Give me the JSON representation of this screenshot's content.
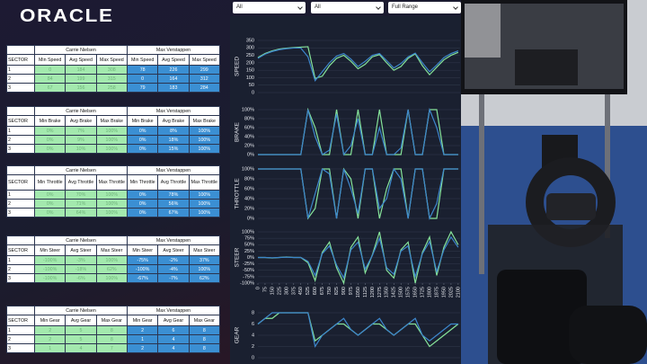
{
  "header": {
    "logo": "ORACLE"
  },
  "filters": [
    "All",
    "All",
    "Full Range"
  ],
  "tables": [
    {
      "groups": [
        "Carrie Nielsen",
        "Max Verstappen"
      ],
      "sector_label": "SECTOR",
      "columns": [
        "Min Speed",
        "Avg Speed",
        "Max Speed",
        "Min Speed",
        "Avg Speed",
        "Max Speed"
      ],
      "rows": [
        [
          "1",
          "0",
          "184",
          "308",
          "78",
          "226",
          "299"
        ],
        [
          "2",
          "84",
          "199",
          "315",
          "0",
          "164",
          "312"
        ],
        [
          "3",
          "67",
          "156",
          "258",
          "79",
          "183",
          "284"
        ]
      ]
    },
    {
      "groups": [
        "Carrie Nielsen",
        "Max Verstappen"
      ],
      "sector_label": "SECTOR",
      "columns": [
        "Min Brake",
        "Avg Brake",
        "Max Brake",
        "Min Brake",
        "Avg Brake",
        "Max Brake"
      ],
      "rows": [
        [
          "1",
          "0%",
          "7%",
          "100%",
          "0%",
          "8%",
          "100%"
        ],
        [
          "2",
          "0%",
          "9%",
          "100%",
          "0%",
          "18%",
          "100%"
        ],
        [
          "3",
          "0%",
          "10%",
          "100%",
          "0%",
          "15%",
          "100%"
        ]
      ]
    },
    {
      "groups": [
        "Carrie Nielsen",
        "Max Verstappen"
      ],
      "sector_label": "SECTOR",
      "columns": [
        "Min Throttle",
        "Avg Throttle",
        "Max Throttle",
        "Min Throttle",
        "Avg Throttle",
        "Max Throttle"
      ],
      "rows": [
        [
          "1",
          "0%",
          "70%",
          "100%",
          "0%",
          "78%",
          "100%"
        ],
        [
          "2",
          "0%",
          "71%",
          "100%",
          "0%",
          "56%",
          "100%"
        ],
        [
          "3",
          "0%",
          "64%",
          "100%",
          "0%",
          "67%",
          "100%"
        ]
      ]
    },
    {
      "groups": [
        "Carrie Nielsen",
        "Max Verstappen"
      ],
      "sector_label": "SECTOR",
      "columns": [
        "Min Steer",
        "Avg Steer",
        "Max Steer",
        "Min Steer",
        "Avg Steer",
        "Max Steer"
      ],
      "rows": [
        [
          "1",
          "-100%",
          "-3%",
          "100%",
          "-75%",
          "-2%",
          "37%"
        ],
        [
          "2",
          "-100%",
          "-18%",
          "62%",
          "-100%",
          "-4%",
          "100%"
        ],
        [
          "3",
          "-100%",
          "-6%",
          "100%",
          "-67%",
          "-7%",
          "62%"
        ]
      ]
    },
    {
      "groups": [
        "Carrie Nielsen",
        "Max Verstappen"
      ],
      "sector_label": "SECTOR",
      "columns": [
        "Min Gear",
        "Avg Gear",
        "Max Gear",
        "Min Gear",
        "Avg Gear",
        "Max Gear"
      ],
      "rows": [
        [
          "1",
          "2",
          "5",
          "8",
          "2",
          "6",
          "8"
        ],
        [
          "2",
          "2",
          "5",
          "8",
          "1",
          "4",
          "8"
        ],
        [
          "3",
          "1",
          "4",
          "7",
          "2",
          "4",
          "8"
        ]
      ]
    }
  ],
  "chart_data": [
    {
      "type": "line",
      "ylabel": "SPEED",
      "grid": true,
      "x": [
        0,
        75,
        150,
        225,
        300,
        375,
        450,
        525,
        600,
        675,
        750,
        825,
        900,
        975,
        1050,
        1125,
        1200,
        1275,
        1350,
        1425,
        1500,
        1575,
        1650,
        1725,
        1800,
        1875,
        1950,
        2025,
        2100
      ],
      "xlim": [
        0,
        2120
      ],
      "ylim": [
        0,
        350
      ],
      "yticks": [
        0,
        50,
        100,
        150,
        200,
        250,
        300,
        350
      ],
      "series": [
        {
          "color": "#86e39a",
          "values": [
            235,
            262,
            280,
            292,
            298,
            302,
            305,
            308,
            95,
            110,
            180,
            230,
            250,
            210,
            160,
            190,
            240,
            255,
            200,
            150,
            175,
            230,
            260,
            180,
            120,
            170,
            220,
            250,
            270
          ]
        },
        {
          "color": "#3d86cc",
          "values": [
            230,
            258,
            276,
            288,
            295,
            299,
            299,
            240,
            80,
            140,
            200,
            245,
            262,
            225,
            175,
            210,
            250,
            262,
            215,
            165,
            195,
            240,
            265,
            200,
            140,
            185,
            235,
            262,
            280
          ]
        }
      ]
    },
    {
      "type": "line",
      "ylabel": "BRAKE",
      "grid": true,
      "x": [
        0,
        75,
        150,
        225,
        300,
        375,
        450,
        525,
        600,
        675,
        750,
        825,
        900,
        975,
        1050,
        1125,
        1200,
        1275,
        1350,
        1425,
        1500,
        1575,
        1650,
        1725,
        1800,
        1875,
        1950,
        2025,
        2100
      ],
      "xlim": [
        0,
        2120
      ],
      "ylim": [
        0,
        100
      ],
      "yticks": [
        {
          "value": 0,
          "label": "0%"
        },
        {
          "value": 20,
          "label": "20%"
        },
        {
          "value": 40,
          "label": "40%"
        },
        {
          "value": 60,
          "label": "60%"
        },
        {
          "value": 80,
          "label": "80%"
        },
        {
          "value": 100,
          "label": "100%"
        }
      ],
      "series": [
        {
          "color": "#86e39a",
          "values": [
            0,
            0,
            0,
            0,
            0,
            0,
            0,
            100,
            60,
            0,
            0,
            100,
            0,
            0,
            100,
            0,
            0,
            100,
            0,
            0,
            0,
            100,
            0,
            0,
            100,
            100,
            0,
            0,
            0
          ]
        },
        {
          "color": "#3d86cc",
          "values": [
            0,
            0,
            0,
            0,
            0,
            0,
            0,
            100,
            40,
            0,
            10,
            90,
            0,
            20,
            80,
            0,
            0,
            60,
            0,
            0,
            15,
            100,
            0,
            0,
            100,
            60,
            0,
            0,
            0
          ]
        }
      ]
    },
    {
      "type": "line",
      "ylabel": "THROTTLE",
      "grid": true,
      "x": [
        0,
        75,
        150,
        225,
        300,
        375,
        450,
        525,
        600,
        675,
        750,
        825,
        900,
        975,
        1050,
        1125,
        1200,
        1275,
        1350,
        1425,
        1500,
        1575,
        1650,
        1725,
        1800,
        1875,
        1950,
        2025,
        2100
      ],
      "xlim": [
        0,
        2120
      ],
      "ylim": [
        0,
        100
      ],
      "yticks": [
        {
          "value": 0,
          "label": "0%"
        },
        {
          "value": 20,
          "label": "20%"
        },
        {
          "value": 40,
          "label": "40%"
        },
        {
          "value": 60,
          "label": "60%"
        },
        {
          "value": 80,
          "label": "80%"
        },
        {
          "value": 100,
          "label": "100%"
        }
      ],
      "series": [
        {
          "color": "#86e39a",
          "values": [
            100,
            100,
            100,
            100,
            100,
            100,
            100,
            0,
            20,
            100,
            100,
            0,
            100,
            80,
            0,
            100,
            100,
            0,
            60,
            100,
            100,
            0,
            100,
            100,
            0,
            0,
            100,
            100,
            100
          ]
        },
        {
          "color": "#3d86cc",
          "values": [
            100,
            100,
            100,
            100,
            100,
            100,
            100,
            0,
            50,
            100,
            90,
            0,
            100,
            60,
            10,
            100,
            100,
            20,
            40,
            100,
            80,
            0,
            100,
            100,
            0,
            30,
            100,
            100,
            100
          ]
        }
      ]
    },
    {
      "type": "line",
      "ylabel": "STEER",
      "grid": true,
      "x": [
        0,
        75,
        150,
        225,
        300,
        375,
        450,
        525,
        600,
        675,
        750,
        825,
        900,
        975,
        1050,
        1125,
        1200,
        1275,
        1350,
        1425,
        1500,
        1575,
        1650,
        1725,
        1800,
        1875,
        1950,
        2025,
        2100
      ],
      "xlim": [
        0,
        2120
      ],
      "xticks": [
        0,
        75,
        150,
        225,
        300,
        375,
        450,
        525,
        600,
        675,
        750,
        825,
        900,
        975,
        1050,
        1125,
        1200,
        1275,
        1350,
        1425,
        1500,
        1575,
        1650,
        1725,
        1800,
        1875,
        1950,
        2025,
        2100
      ],
      "ylim": [
        -100,
        100
      ],
      "yticks": [
        {
          "value": -100,
          "label": "-100%"
        },
        {
          "value": -75,
          "label": "-75%"
        },
        {
          "value": -50,
          "label": "-50%"
        },
        {
          "value": -25,
          "label": "-25%"
        },
        {
          "value": 0,
          "label": "0%"
        },
        {
          "value": 25,
          "label": "25%"
        },
        {
          "value": 50,
          "label": "50%"
        },
        {
          "value": 75,
          "label": "75%"
        },
        {
          "value": 100,
          "label": "100%"
        }
      ],
      "series": [
        {
          "color": "#86e39a",
          "values": [
            0,
            0,
            -2,
            0,
            2,
            0,
            0,
            -20,
            -90,
            20,
            60,
            -40,
            -100,
            40,
            80,
            -60,
            10,
            100,
            -50,
            -80,
            30,
            60,
            -100,
            20,
            80,
            -70,
            40,
            100,
            50
          ]
        },
        {
          "color": "#3d86cc",
          "values": [
            0,
            0,
            -1,
            0,
            1,
            0,
            0,
            -15,
            -70,
            15,
            45,
            -30,
            -80,
            30,
            60,
            -45,
            8,
            75,
            -40,
            -65,
            25,
            45,
            -75,
            15,
            62,
            -55,
            30,
            80,
            40
          ]
        }
      ]
    },
    {
      "type": "line",
      "ylabel": "GEAR",
      "grid": true,
      "x": [
        0,
        75,
        150,
        225,
        300,
        375,
        450,
        525,
        600,
        675,
        750,
        825,
        900,
        975,
        1050,
        1125,
        1200,
        1275,
        1350,
        1425,
        1500,
        1575,
        1650,
        1725,
        1800,
        1875,
        1950,
        2025,
        2100
      ],
      "xlim": [
        0,
        2120
      ],
      "ylim": [
        0,
        8
      ],
      "yticks": [
        0,
        2,
        4,
        6,
        8
      ],
      "series": [
        {
          "color": "#86e39a",
          "values": [
            6,
            7,
            7,
            8,
            8,
            8,
            8,
            8,
            3,
            4,
            5,
            6,
            6,
            5,
            4,
            5,
            6,
            6,
            5,
            4,
            5,
            6,
            6,
            4,
            2,
            3,
            4,
            5,
            6
          ]
        },
        {
          "color": "#3d86cc",
          "values": [
            6,
            7,
            8,
            8,
            8,
            8,
            8,
            8,
            2,
            4,
            5,
            6,
            7,
            5,
            4,
            5,
            6,
            7,
            5,
            4,
            5,
            6,
            7,
            4,
            3,
            4,
            5,
            6,
            6
          ]
        }
      ]
    }
  ]
}
